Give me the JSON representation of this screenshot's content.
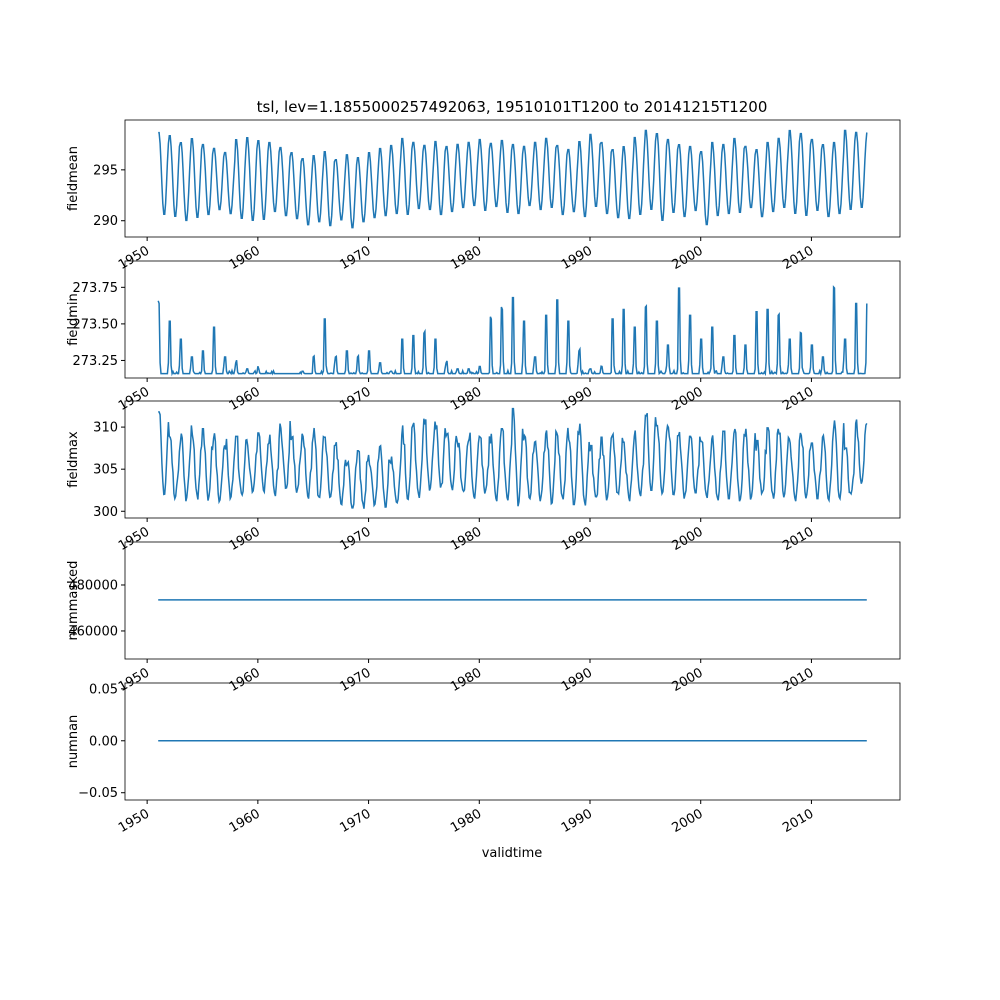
{
  "chart_data": {
    "type": "line",
    "title": "tsl, lev=1.1855000257492063, 19510101T1200 to 20141215T1200",
    "xlabel": "validtime",
    "x_range": [
      1948,
      2018
    ],
    "x_ticks": [
      "1950",
      "1960",
      "1970",
      "1980",
      "1990",
      "2000",
      "2010"
    ],
    "data_years": [
      1951,
      2015
    ],
    "color": "#1f77b4",
    "panels": [
      {
        "ylabel": "fieldmean",
        "ylim": [
          288.4,
          299.9
        ],
        "yticks": [
          290,
          295
        ],
        "ytick_labels": [
          "290",
          "295"
        ],
        "annual_max": [
          298.8,
          298.5,
          297.8,
          298.2,
          297.6,
          297.2,
          296.8,
          298.1,
          298.3,
          298,
          297.8,
          297.3,
          296.8,
          296.2,
          296.5,
          296.9,
          296.1,
          296.6,
          296.3,
          296.8,
          297.2,
          297.5,
          298.2,
          297.8,
          297.5,
          297.9,
          297.4,
          297.6,
          297.8,
          298.1,
          297.7,
          298,
          297.6,
          297.4,
          297.8,
          298.2,
          297.5,
          297.1,
          297.9,
          298.6,
          297.8,
          297.1,
          297.4,
          298.3,
          299,
          298.7,
          298.1,
          297.6,
          297.4,
          296.9,
          297.8,
          297.6,
          298.2,
          297.4,
          297.1,
          297.8,
          298.2,
          299,
          298.7,
          298.1,
          297.6,
          297.8,
          299,
          298.8
        ],
        "annual_min": [
          290.5,
          290.3,
          289.9,
          290.2,
          290.5,
          291,
          290.6,
          290.1,
          289.9,
          290,
          290.8,
          290.4,
          290.1,
          289.5,
          289.8,
          289.4,
          290,
          289.2,
          289.8,
          290.2,
          290.4,
          290.6,
          290.5,
          291.1,
          291,
          290.5,
          290.8,
          291.2,
          291.4,
          290.9,
          291.3,
          290.7,
          290.6,
          291.4,
          291,
          291.2,
          290.5,
          290.8,
          290.3,
          291.3,
          290.6,
          290.2,
          290.1,
          290.5,
          291,
          289.9,
          290.7,
          290.3,
          290.9,
          289.5,
          290.4,
          290.6,
          290.7,
          291.2,
          290.3,
          290.8,
          291.2,
          290.6,
          290.4,
          290.9,
          290.3,
          290.6,
          291,
          291.2
        ]
      },
      {
        "ylabel": "fieldmin",
        "ylim": [
          273.13,
          273.93
        ],
        "yticks": [
          273.25,
          273.5,
          273.75
        ],
        "ytick_labels": [
          "273.25",
          "273.50",
          "273.75"
        ],
        "baseline": 273.16,
        "annual_peak": [
          273.75,
          273.6,
          273.45,
          273.3,
          273.35,
          273.55,
          273.3,
          273.25,
          273.2,
          273.2,
          273.16,
          273.16,
          273.16,
          273.18,
          273.3,
          273.62,
          273.3,
          273.35,
          273.3,
          273.35,
          273.25,
          273.18,
          273.45,
          273.48,
          273.5,
          273.45,
          273.25,
          273.2,
          273.2,
          273.22,
          273.62,
          273.7,
          273.8,
          273.6,
          273.3,
          273.65,
          273.78,
          273.6,
          273.35,
          273.2,
          273.22,
          273.62,
          273.7,
          273.55,
          273.72,
          273.6,
          273.4,
          273.88,
          273.65,
          273.45,
          273.55,
          273.3,
          273.48,
          273.4,
          273.68,
          273.7,
          273.65,
          273.45,
          273.5,
          273.4,
          273.3,
          273.88,
          273.45,
          273.75
        ]
      },
      {
        "ylabel": "fieldmax",
        "ylim": [
          299.2,
          313.1
        ],
        "yticks": [
          300,
          305,
          310
        ],
        "ytick_labels": [
          "300",
          "305",
          "310"
        ],
        "annual_max": [
          311.8,
          308.9,
          309.5,
          310.2,
          309.8,
          309.4,
          308.6,
          308.9,
          308.5,
          309.3,
          309.1,
          310.8,
          309.6,
          309.2,
          310.1,
          308.8,
          308.2,
          306.6,
          307.2,
          306.8,
          307.9,
          306.5,
          310.2,
          310.5,
          311,
          310.8,
          309.5,
          308.4,
          309.6,
          308.9,
          309.2,
          309.8,
          312.2,
          309.5,
          308.6,
          310.1,
          309.3,
          309.9,
          310.4,
          307.8,
          308.8,
          309.5,
          308.2,
          309.6,
          312.3,
          310.9,
          311.1,
          309.4,
          308.9,
          308.3,
          309.1,
          309.5,
          309.8,
          309.8,
          308.4,
          309.9,
          310.5,
          308.6,
          309.3,
          308.1,
          309,
          310.8,
          307.5,
          310.9
        ],
        "annual_min": [
          302,
          301.5,
          301.2,
          301.4,
          301.2,
          301.1,
          301.5,
          301.7,
          302,
          302.3,
          301.8,
          302.5,
          302.2,
          301.5,
          301.1,
          301.3,
          300.8,
          300.4,
          300.3,
          300.7,
          300.5,
          301,
          301.3,
          301.5,
          302.2,
          302.6,
          302.5,
          302.1,
          301.5,
          302,
          301.2,
          301.3,
          300.6,
          301.5,
          301.2,
          300.9,
          301.2,
          300.8,
          300.7,
          301.5,
          301.3,
          301.6,
          301.2,
          301.8,
          302.5,
          302.1,
          301.6,
          301.5,
          302.2,
          301.5,
          301.3,
          301.5,
          301.2,
          301.4,
          301.8,
          301.5,
          301.6,
          301.2,
          301.4,
          301.5,
          301.3,
          301.5,
          301.8,
          303.2
        ]
      },
      {
        "ylabel": "nummasked",
        "ylim": [
          447800,
          498700
        ],
        "yticks": [
          460000,
          480000
        ],
        "ytick_labels": [
          "460000",
          "480000"
        ],
        "constant": 473500
      },
      {
        "ylabel": "numnan",
        "ylim": [
          -0.057,
          0.0556
        ],
        "yticks": [
          -0.05,
          0,
          0.05
        ],
        "ytick_labels": [
          "−0.05",
          "0.00",
          "0.05"
        ],
        "constant": 0
      }
    ]
  }
}
